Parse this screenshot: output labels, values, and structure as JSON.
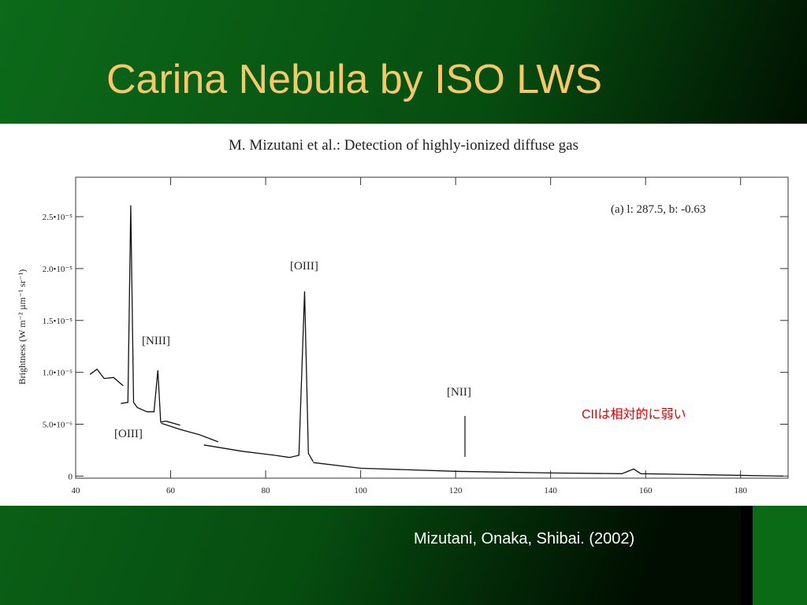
{
  "title": "Carina Nebula by ISO LWS",
  "caption": "Mizutani, Onaka, Shibai. (2002)",
  "chart_data": {
    "type": "line",
    "title": "M. Mizutani et al.: Detection of highly-ionized diffuse gas",
    "ylabel": "Brightness (W m⁻² µm⁻¹ sr⁻¹)",
    "annotations": [
      "(a)  l: 287.5, b: -0.63",
      "[OIII]",
      "[NIII]",
      "[OIII]",
      "[NII]",
      "CIIは相対的に弱い"
    ],
    "color": "#111111",
    "xlim": [
      40,
      190
    ],
    "ylim": [
      -2e-07,
      2.88e-05
    ],
    "xticks": [
      40,
      60,
      80,
      100,
      120,
      140,
      160,
      180
    ],
    "yticks": [
      0,
      {
        "value": 5e-06,
        "label": "5.0•10⁻⁶"
      },
      {
        "value": 1e-05,
        "label": "1.0•10⁻⁵"
      },
      {
        "value": 1.5e-05,
        "label": "1.5•10⁻⁵"
      },
      {
        "value": 2e-05,
        "label": "2.0•10⁻⁵"
      },
      {
        "value": 2.5e-05,
        "label": "2.5•10⁻⁵"
      }
    ],
    "series": [
      {
        "x": [
          43,
          44.5,
          46,
          48,
          50
        ],
        "values": [
          9.8e-06,
          1.03e-05,
          9.4e-06,
          9.5e-06,
          8.7e-06
        ]
      },
      {
        "x": [
          49.5,
          51,
          51.6,
          52.2,
          53,
          55,
          56.5,
          57.3,
          57.9,
          59,
          62
        ],
        "values": [
          7e-06,
          7.1e-06,
          2.61e-05,
          7.1e-06,
          6.6e-06,
          6.2e-06,
          6.2e-06,
          1.02e-05,
          5.2e-06,
          5.3e-06,
          4.9e-06
        ]
      },
      {
        "x": [
          58,
          62,
          66,
          70
        ],
        "values": [
          5.1e-06,
          4.5e-06,
          4e-06,
          3.3e-06
        ]
      },
      {
        "x": [
          67,
          75,
          82,
          85,
          87,
          88.2,
          89,
          90
        ],
        "values": [
          3e-06,
          2.4e-06,
          2e-06,
          1.8e-06,
          2e-06,
          1.78e-05,
          2.2e-06,
          1.4e-06
        ]
      },
      {
        "x": [
          90,
          100,
          120,
          140,
          155,
          157.5,
          159,
          170,
          189
        ],
        "values": [
          1.3e-06,
          7.6e-07,
          4.6e-07,
          3e-07,
          2.3e-07,
          6.8e-07,
          2.3e-07,
          1.5e-07,
          0
        ]
      }
    ]
  }
}
